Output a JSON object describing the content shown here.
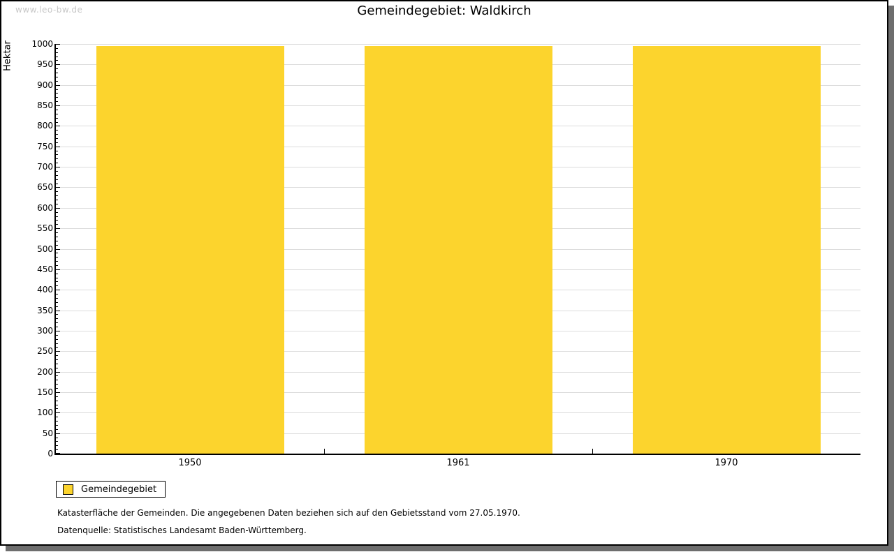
{
  "watermark": "www.leo-bw.de",
  "title": "Gemeindegebiet: Waldkirch",
  "chart_data": {
    "type": "bar",
    "title": "Gemeindegebiet: Waldkirch",
    "categories": [
      "1950",
      "1961",
      "1970"
    ],
    "series": [
      {
        "name": "Gemeindegebiet",
        "values": [
          995,
          995,
          995
        ]
      }
    ],
    "xlabel": "",
    "ylabel": "Hektar",
    "ylim": [
      0,
      1000
    ],
    "y_major_step": 50,
    "y_minor_step": 10,
    "grid": true,
    "legend_position": "bottom-left",
    "bar_color": "#FCD42D"
  },
  "legend": {
    "label": "Gemeindegebiet",
    "swatch_color": "#FCD42D"
  },
  "footnotes": [
    "Katasterfläche der Gemeinden. Die angegebenen Daten beziehen sich auf den Gebietsstand vom 27.05.1970.",
    "Datenquelle: Statistisches Landesamt Baden-Württemberg."
  ],
  "colors": {
    "bar": "#FCD42D",
    "grid": "#DCDCDC",
    "axis": "#000000",
    "shadow": "#6E6E6E",
    "watermark": "#C8C8C8"
  }
}
